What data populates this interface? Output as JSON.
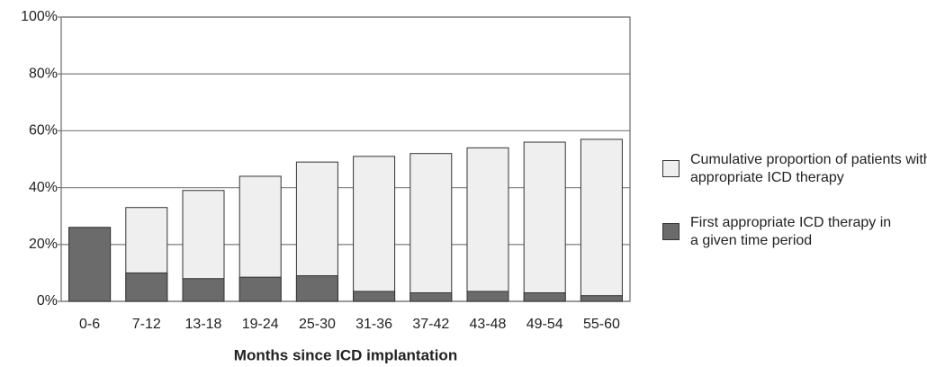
{
  "chart_data": {
    "type": "overlay-bar",
    "x_label": "Months since ICD implantation",
    "categories": [
      "0-6",
      "7-12",
      "13-18",
      "19-24",
      "25-30",
      "31-36",
      "37-42",
      "43-48",
      "49-54",
      "55-60"
    ],
    "series": [
      {
        "name": "Cumulative proportion of patients with appropriate ICD therapy",
        "color": "#efefef",
        "values": [
          26,
          33,
          39,
          44,
          49,
          51,
          52,
          54,
          56,
          57
        ]
      },
      {
        "name": "First appropriate ICD therapy in a given time period",
        "color": "#6b6b6b",
        "values": [
          26,
          10,
          8,
          8.5,
          9,
          3.5,
          3,
          3.5,
          3,
          2
        ]
      }
    ],
    "ylim": [
      0,
      100
    ],
    "yticks": [
      {
        "value": 0,
        "label": "0%"
      },
      {
        "value": 20,
        "label": "20%"
      },
      {
        "value": 40,
        "label": "40%"
      },
      {
        "value": 60,
        "label": "60%"
      },
      {
        "value": 80,
        "label": "80%"
      },
      {
        "value": 100,
        "label": "100%"
      }
    ],
    "grid": true
  }
}
